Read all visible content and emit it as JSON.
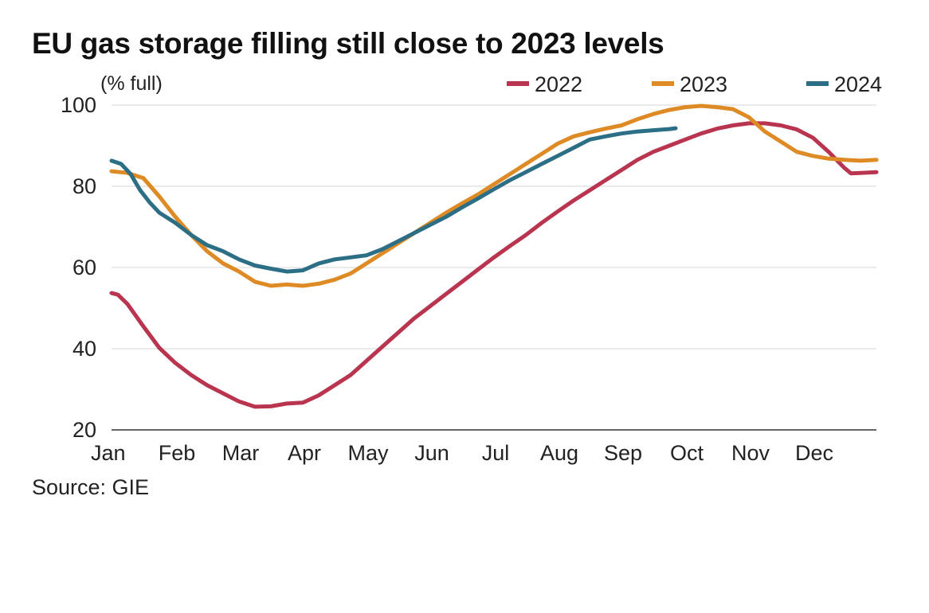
{
  "title": "EU gas storage filling still close to 2023 levels",
  "source": "Source: GIE",
  "colors": {
    "2022": "#b8344f",
    "2023": "#de8a25",
    "2024": "#2c6e85",
    "grid": "#dddddd",
    "axis": "#333333"
  },
  "chart_data": {
    "type": "line",
    "title": "EU gas storage filling still close to 2023 levels",
    "unit_label": "(% full)",
    "xlabel": "",
    "ylabel": "(% full)",
    "ylim": [
      20,
      100
    ],
    "yticks": [
      20,
      40,
      60,
      80,
      100
    ],
    "x_domain_months": [
      0,
      12
    ],
    "month_labels": [
      "Jan",
      "Feb",
      "Mar",
      "Apr",
      "May",
      "Jun",
      "Jul",
      "Aug",
      "Sep",
      "Oct",
      "Nov",
      "Dec"
    ],
    "grid": "horizontal",
    "legend_position": "top-right",
    "x_unit": "months since Jan 1",
    "series": [
      {
        "name": "2022",
        "color": "#b8344f",
        "x": [
          0,
          0.1,
          0.25,
          0.5,
          0.75,
          1.0,
          1.25,
          1.5,
          1.75,
          2.0,
          2.25,
          2.5,
          2.75,
          3.0,
          3.25,
          3.5,
          3.75,
          4.0,
          4.25,
          4.5,
          4.75,
          5.0,
          5.25,
          5.5,
          5.75,
          6.0,
          6.25,
          6.5,
          6.75,
          7.0,
          7.25,
          7.5,
          7.75,
          8.0,
          8.25,
          8.5,
          8.75,
          9.0,
          9.25,
          9.5,
          9.75,
          10.0,
          10.25,
          10.5,
          10.75,
          11.0,
          11.25,
          11.5,
          11.6,
          11.75,
          12.0
        ],
        "values": [
          53.7,
          53.3,
          51.0,
          45.5,
          40.2,
          36.5,
          33.5,
          31.0,
          29.0,
          27.0,
          25.7,
          25.8,
          26.5,
          26.7,
          28.5,
          31.0,
          33.5,
          37.0,
          40.5,
          44.0,
          47.5,
          50.5,
          53.5,
          56.5,
          59.5,
          62.5,
          65.3,
          68.0,
          71.0,
          73.8,
          76.5,
          79.0,
          81.5,
          84.0,
          86.5,
          88.5,
          90.0,
          91.5,
          93.0,
          94.2,
          95.0,
          95.5,
          95.5,
          95.0,
          94.0,
          92.0,
          88.5,
          84.5,
          83.2,
          83.3,
          83.5
        ]
      },
      {
        "name": "2023",
        "color": "#de8a25",
        "x": [
          0,
          0.25,
          0.5,
          0.75,
          1.0,
          1.25,
          1.5,
          1.75,
          2.0,
          2.25,
          2.5,
          2.75,
          3.0,
          3.25,
          3.5,
          3.75,
          4.0,
          4.25,
          4.5,
          4.75,
          5.0,
          5.25,
          5.5,
          5.75,
          6.0,
          6.25,
          6.5,
          6.75,
          7.0,
          7.25,
          7.5,
          7.75,
          8.0,
          8.25,
          8.5,
          8.75,
          9.0,
          9.25,
          9.5,
          9.75,
          10.0,
          10.25,
          10.5,
          10.75,
          11.0,
          11.25,
          11.5,
          11.75,
          12.0
        ],
        "values": [
          83.7,
          83.3,
          82.0,
          77.5,
          72.5,
          68.0,
          64.0,
          61.0,
          59.0,
          56.5,
          55.5,
          55.8,
          55.5,
          56.0,
          57.0,
          58.5,
          61.0,
          63.5,
          66.0,
          68.5,
          71.0,
          73.5,
          75.8,
          78.0,
          80.5,
          83.0,
          85.5,
          88.0,
          90.5,
          92.3,
          93.3,
          94.2,
          95.0,
          96.5,
          97.8,
          98.8,
          99.5,
          99.8,
          99.5,
          99.0,
          97.0,
          93.5,
          91.0,
          88.5,
          87.5,
          86.8,
          86.5,
          86.3,
          86.5
        ]
      },
      {
        "name": "2024",
        "color": "#2c6e85",
        "x": [
          0,
          0.15,
          0.3,
          0.45,
          0.6,
          0.75,
          1.0,
          1.25,
          1.5,
          1.75,
          2.0,
          2.25,
          2.5,
          2.75,
          3.0,
          3.25,
          3.5,
          3.75,
          4.0,
          4.25,
          4.5,
          4.75,
          5.0,
          5.25,
          5.5,
          5.75,
          6.0,
          6.25,
          6.5,
          6.75,
          7.0,
          7.25,
          7.5,
          7.75,
          8.0,
          8.25,
          8.5,
          8.75,
          8.85
        ],
        "values": [
          86.3,
          85.5,
          83.0,
          79.0,
          76.0,
          73.5,
          71.0,
          68.0,
          65.5,
          64.0,
          62.0,
          60.5,
          59.7,
          59.0,
          59.3,
          61.0,
          62.0,
          62.5,
          63.0,
          64.5,
          66.5,
          68.5,
          70.5,
          72.5,
          74.8,
          77.0,
          79.3,
          81.5,
          83.5,
          85.5,
          87.5,
          89.5,
          91.5,
          92.3,
          93.0,
          93.5,
          93.8,
          94.1,
          94.3
        ]
      }
    ]
  }
}
